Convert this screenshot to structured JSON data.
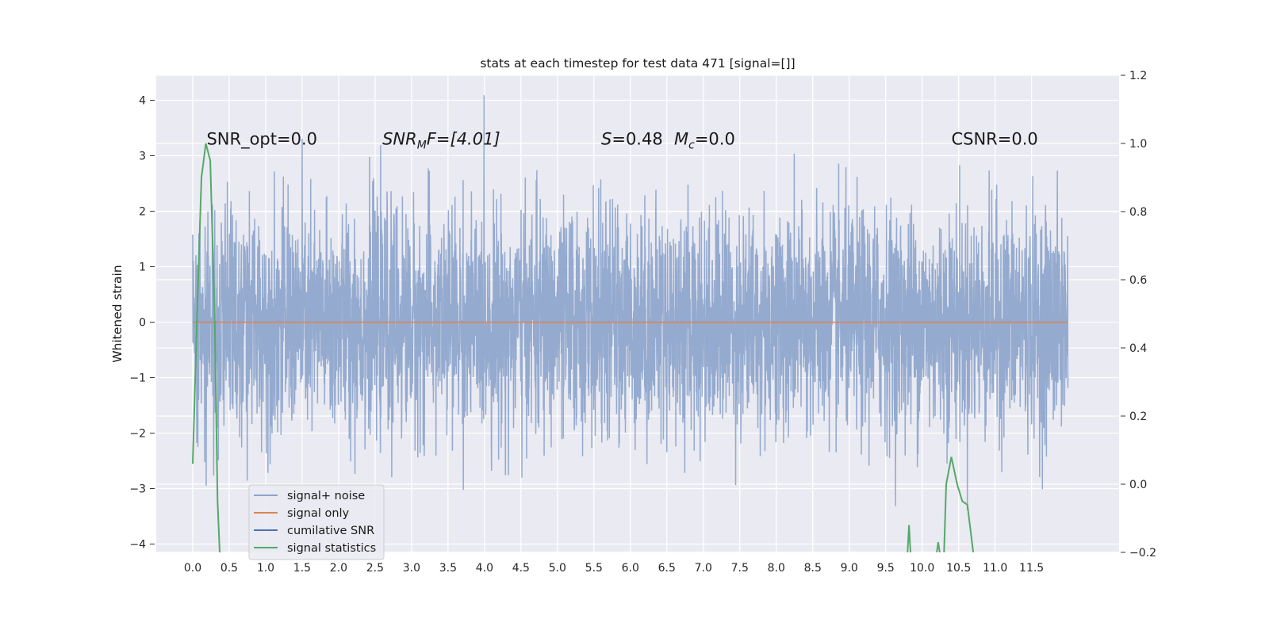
{
  "chart_data": {
    "type": "line",
    "title": "stats at each timestep for test data 471 [signal=[]]",
    "ylabel": "Whitened strain",
    "xlabel": "",
    "xlim": [
      -0.5,
      12.7
    ],
    "ylim": [
      -4.15,
      4.45
    ],
    "y2lim": [
      -0.2,
      1.2
    ],
    "x_ticks": [
      "0.0",
      "0.5",
      "1.0",
      "1.5",
      "2.0",
      "2.5",
      "3.0",
      "3.5",
      "4.0",
      "4.5",
      "5.0",
      "5.5",
      "6.0",
      "6.5",
      "7.0",
      "7.5",
      "8.0",
      "8.5",
      "9.0",
      "9.5",
      "10.0",
      "10.5",
      "11.0",
      "11.5"
    ],
    "y_ticks": [
      "4",
      "3",
      "2",
      "1",
      "0",
      "−1",
      "−2",
      "−3",
      "−4"
    ],
    "y2_ticks": [
      "1.2",
      "1.0",
      "0.8",
      "0.6",
      "0.4",
      "0.2",
      "0.0",
      "−0.2"
    ],
    "grid": true,
    "legend_position": "lower-left",
    "colors": {
      "noise": "#8fa6cc",
      "signal": "#dd8452",
      "cumulative": "#4c72b0",
      "stats": "#55a868",
      "plot_bg": "#eaeaf2",
      "grid": "#ffffff"
    },
    "annotations": {
      "snr_opt": "SNR_opt=0.0",
      "snr_mf_main": "SNR",
      "snr_mf_sub": "M",
      "snr_mf_rest": "F=[4.01]",
      "s_var": "S",
      "s_rest": "=0.48",
      "mc_var": "M",
      "mc_sub": "c",
      "mc_rest": "=0.0",
      "csnr": "CSNR=0.0"
    },
    "series": [
      {
        "name": "signal+ noise",
        "axis": "left",
        "x_range": [
          0.0,
          12.0
        ],
        "samples": 4096,
        "description_values": {
          "typical_min": -2.6,
          "typical_max": 2.6,
          "max": 4.09,
          "min": -3.7
        }
      },
      {
        "name": "signal only",
        "axis": "left",
        "x": [
          0.0,
          12.0
        ],
        "y": [
          0,
          0
        ]
      },
      {
        "name": "cumilative SNR",
        "axis": "right",
        "x": [],
        "y": []
      },
      {
        "name": "signal statistics",
        "axis": "right",
        "segments": [
          {
            "x": [
              0.0,
              0.06,
              0.12,
              0.18,
              0.24,
              0.3,
              0.34,
              0.37
            ],
            "y": [
              0.06,
              0.5,
              0.9,
              1.0,
              0.95,
              0.5,
              -0.05,
              -0.2
            ]
          },
          {
            "x": [
              9.8,
              9.82,
              9.84
            ],
            "y": [
              -0.2,
              -0.12,
              -0.2
            ]
          },
          {
            "x": [
              10.2,
              10.22,
              10.24
            ],
            "y": [
              -0.2,
              -0.17,
              -0.2
            ]
          },
          {
            "x": [
              10.3,
              10.33,
              10.4,
              10.48,
              10.55,
              10.62,
              10.7
            ],
            "y": [
              -0.2,
              0.0,
              0.08,
              0.0,
              -0.05,
              -0.06,
              -0.2
            ]
          }
        ]
      }
    ],
    "legend": [
      "signal+ noise",
      "signal only",
      "cumilative SNR",
      "signal statistics"
    ]
  }
}
